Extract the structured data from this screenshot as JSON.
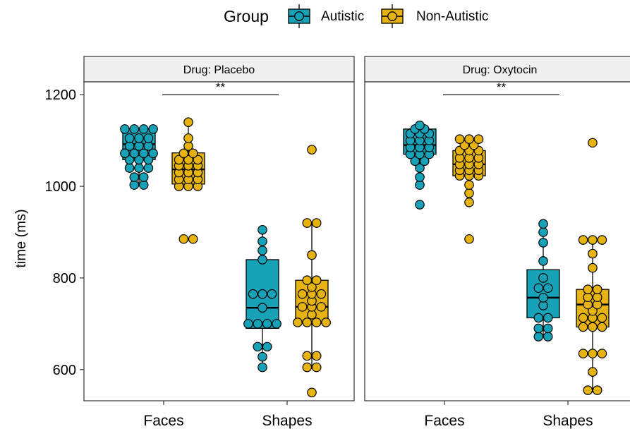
{
  "chart_data": {
    "type": "box",
    "legend": {
      "title": "Group",
      "position": "top",
      "entries": [
        {
          "name": "Autistic",
          "color": "#17a2b8"
        },
        {
          "name": "Non-Autistic",
          "color": "#e6b310"
        }
      ]
    },
    "ylabel": "time (ms)",
    "yticks": [
      600,
      800,
      1000,
      1200
    ],
    "ylim": [
      532,
      1228
    ],
    "categories": [
      "Faces",
      "Shapes"
    ],
    "significance": "**",
    "panels": [
      {
        "strip": "Drug: Placebo",
        "groups": [
          {
            "group": "Autistic",
            "category": "Faces",
            "box": {
              "q1": 1058,
              "median": 1092,
              "q3": 1125,
              "lower": 1003,
              "upper": 1125
            },
            "points": [
              1003,
              1003,
              1020,
              1020,
              1040,
              1040,
              1040,
              1058,
              1058,
              1058,
              1072,
              1072,
              1072,
              1072,
              1088,
              1088,
              1088,
              1105,
              1105,
              1105,
              1125,
              1125,
              1125,
              1125
            ]
          },
          {
            "group": "Non-Autistic",
            "category": "Faces",
            "box": {
              "q1": 1005,
              "median": 1037,
              "q3": 1073,
              "lower": 1005,
              "upper": 1140
            },
            "points": [
              885,
              885,
              1000,
              1000,
              1000,
              1015,
              1015,
              1015,
              1030,
              1030,
              1030,
              1045,
              1045,
              1045,
              1058,
              1058,
              1058,
              1072,
              1072,
              1088,
              1105,
              1140
            ]
          },
          {
            "group": "Autistic",
            "category": "Shapes",
            "box": {
              "q1": 690,
              "median": 735,
              "q3": 840,
              "lower": 605,
              "upper": 905
            },
            "points": [
              605,
              628,
              650,
              650,
              700,
              700,
              700,
              700,
              735,
              765,
              765,
              765,
              840,
              860,
              880,
              905
            ]
          },
          {
            "group": "Non-Autistic",
            "category": "Shapes",
            "box": {
              "q1": 703,
              "median": 737,
              "q3": 795,
              "lower": 605,
              "upper": 920
            },
            "points": [
              550,
              605,
              605,
              630,
              630,
              703,
              703,
              703,
              703,
              720,
              737,
              737,
              737,
              750,
              765,
              765,
              765,
              780,
              795,
              795,
              850,
              920,
              920,
              1080
            ]
          }
        ]
      },
      {
        "strip": "Drug: Oxytocin",
        "groups": [
          {
            "group": "Autistic",
            "category": "Faces",
            "box": {
              "q1": 1070,
              "median": 1090,
              "q3": 1125,
              "lower": 1003,
              "upper": 1133
            },
            "points": [
              960,
              1003,
              1020,
              1040,
              1055,
              1055,
              1070,
              1070,
              1070,
              1085,
              1085,
              1085,
              1100,
              1100,
              1100,
              1115,
              1115,
              1115,
              1125,
              1125,
              1133
            ]
          },
          {
            "group": "Non-Autistic",
            "category": "Faces",
            "box": {
              "q1": 1023,
              "median": 1048,
              "q3": 1078,
              "lower": 1003,
              "upper": 1103
            },
            "points": [
              885,
              965,
              985,
              1003,
              1023,
              1023,
              1023,
              1035,
              1035,
              1035,
              1048,
              1048,
              1048,
              1062,
              1062,
              1062,
              1078,
              1078,
              1078,
              1090,
              1090,
              1103,
              1103,
              1103
            ]
          },
          {
            "group": "Autistic",
            "category": "Shapes",
            "box": {
              "q1": 713,
              "median": 757,
              "q3": 818,
              "lower": 672,
              "upper": 918
            },
            "points": [
              672,
              672,
              690,
              690,
              713,
              713,
              740,
              757,
              778,
              778,
              800,
              837,
              877,
              900,
              918
            ]
          },
          {
            "group": "Non-Autistic",
            "category": "Shapes",
            "box": {
              "q1": 693,
              "median": 742,
              "q3": 775,
              "lower": 550,
              "upper": 883
            },
            "points": [
              555,
              555,
              595,
              635,
              635,
              635,
              693,
              693,
              693,
              713,
              713,
              713,
              728,
              742,
              742,
              758,
              758,
              775,
              775,
              822,
              853,
              883,
              883,
              883,
              1095
            ]
          }
        ]
      }
    ]
  }
}
